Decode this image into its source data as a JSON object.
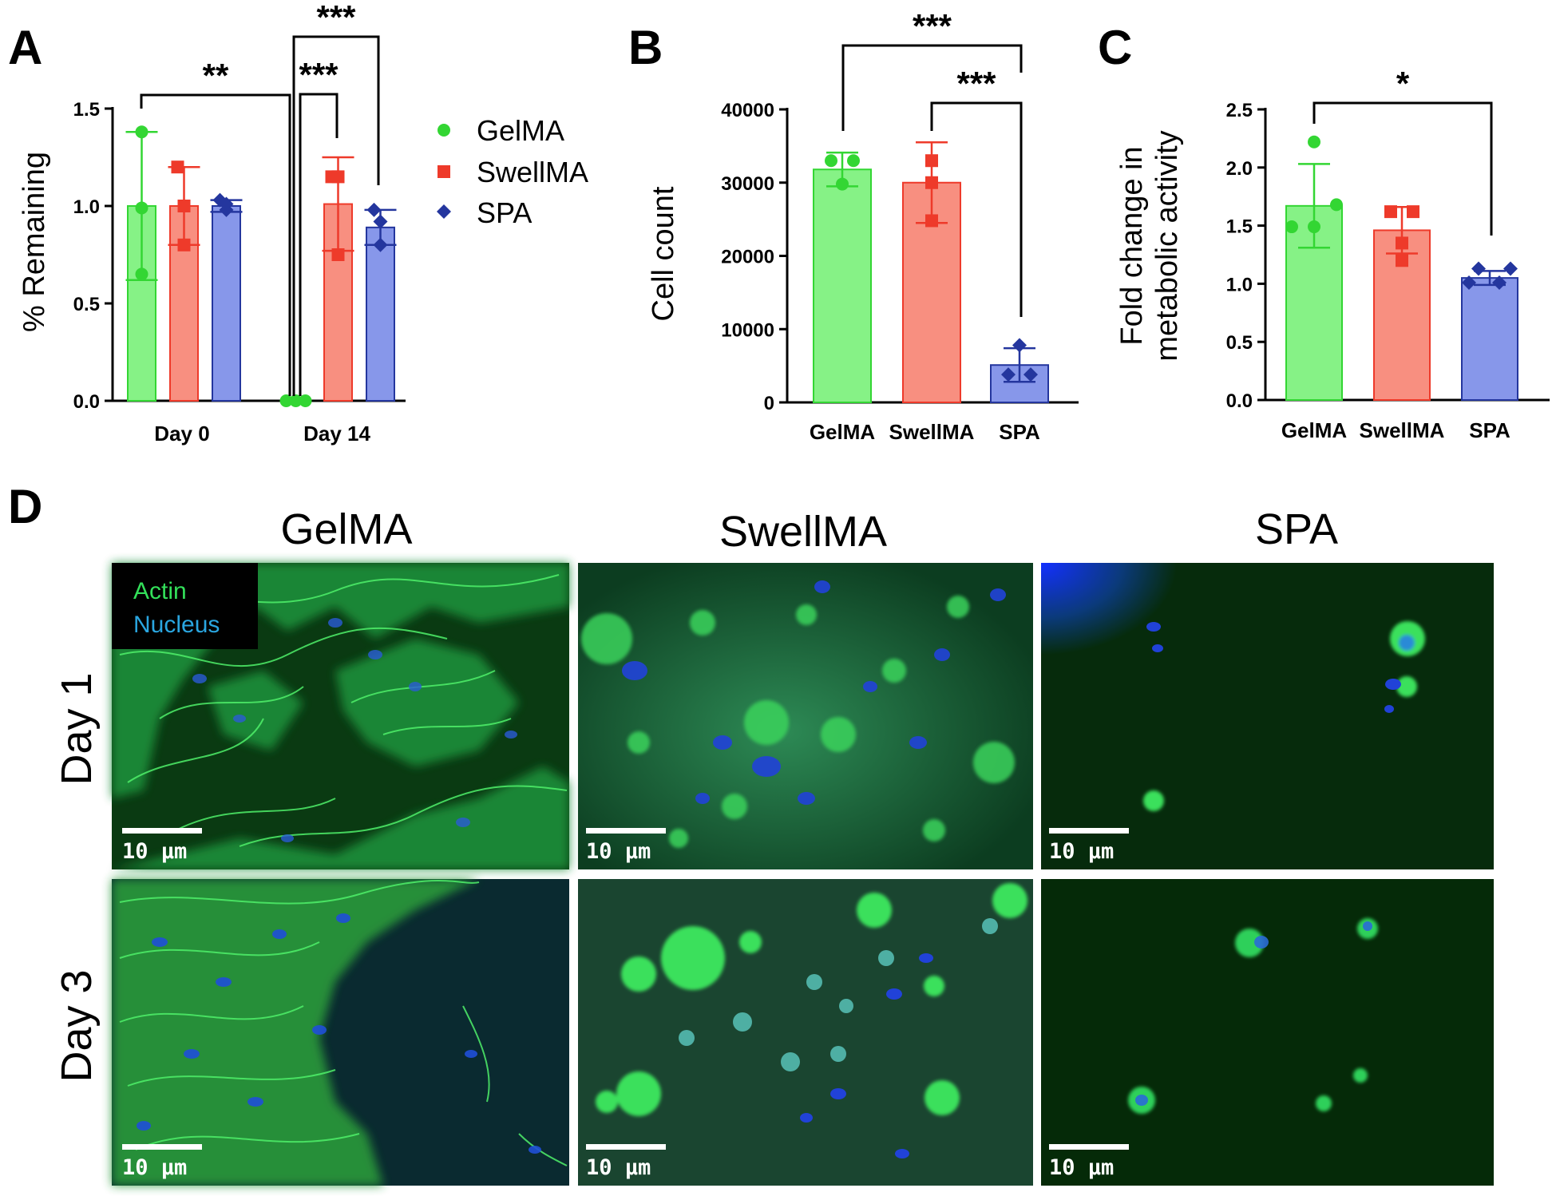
{
  "colors": {
    "GelMA": "#33d633",
    "GelMA_fill": "#86f286",
    "SwellMA": "#ee3a2a",
    "SwellMA_fill": "#f88f80",
    "SPA": "#24369e",
    "SPA_fill": "#8797ea"
  },
  "chart_data": [
    {
      "panel": "A",
      "type": "bar",
      "ylabel": "% Remaining",
      "ylim": [
        0,
        1.5
      ],
      "yticks": [
        "0.0",
        "0.5",
        "1.0",
        "1.5"
      ],
      "categories": [
        "Day 0",
        "Day 14"
      ],
      "series": [
        {
          "name": "GelMA",
          "values": [
            1.0,
            0.0
          ],
          "err": [
            0.38,
            0.0
          ],
          "points": [
            [
              1.38,
              0.99,
              0.65
            ],
            [
              0.0,
              0.0,
              0.0
            ]
          ],
          "marker": "circle"
        },
        {
          "name": "SwellMA",
          "values": [
            1.0,
            1.01
          ],
          "err": [
            0.2,
            0.24
          ],
          "points": [
            [
              1.2,
              1.0,
              0.8
            ],
            [
              1.15,
              1.15,
              0.75
            ]
          ],
          "marker": "square"
        },
        {
          "name": "SPA",
          "values": [
            1.0,
            0.89
          ],
          "err": [
            0.03,
            0.09
          ],
          "points": [
            [
              1.03,
              0.98,
              1.01
            ],
            [
              0.98,
              0.92,
              0.8
            ]
          ],
          "marker": "diamond"
        }
      ],
      "significance": [
        "**",
        "***",
        "***"
      ],
      "legend": [
        "GelMA",
        "SwellMA",
        "SPA"
      ]
    },
    {
      "panel": "B",
      "type": "bar",
      "ylabel": "Cell count",
      "ylim": [
        0,
        40000
      ],
      "yticks": [
        "0",
        "10000",
        "20000",
        "30000",
        "40000"
      ],
      "categories": [
        "GelMA",
        "SwellMA",
        "SPA"
      ],
      "values": [
        31800,
        30000,
        5100
      ],
      "err": [
        2300,
        5500,
        2300
      ],
      "points": [
        [
          33000,
          33000,
          29800
        ],
        [
          33000,
          30000,
          24800
        ],
        [
          7800,
          3800,
          3800
        ]
      ],
      "significance": [
        "***",
        "***"
      ]
    },
    {
      "panel": "C",
      "type": "bar",
      "ylabel": "Fold change in metabolic activity",
      "ylabel_lines": [
        "Fold change in",
        "metabolic activity"
      ],
      "ylim": [
        0,
        2.5
      ],
      "yticks": [
        "0.0",
        "0.5",
        "1.0",
        "1.5",
        "2.0",
        "2.5"
      ],
      "categories": [
        "GelMA",
        "SwellMA",
        "SPA"
      ],
      "values": [
        1.67,
        1.46,
        1.05
      ],
      "err": [
        0.36,
        0.2,
        0.06
      ],
      "points": [
        [
          2.22,
          1.68,
          1.49,
          1.49
        ],
        [
          1.62,
          1.62,
          1.35,
          1.2
        ],
        [
          1.13,
          1.13,
          1.01,
          1.01
        ]
      ],
      "significance": [
        "*"
      ]
    }
  ],
  "panel_labels": {
    "A": "A",
    "B": "B",
    "C": "C",
    "D": "D"
  },
  "microscopy": {
    "columns": [
      "GelMA",
      "SwellMA",
      "SPA"
    ],
    "rows": [
      "Day 1",
      "Day 3"
    ],
    "legend": {
      "actin": "Actin",
      "nucleus": "Nucleus"
    },
    "scale_bar": "10 μm",
    "actin_color": "#2ee85a",
    "nucleus_color": "#2aa6e0"
  }
}
